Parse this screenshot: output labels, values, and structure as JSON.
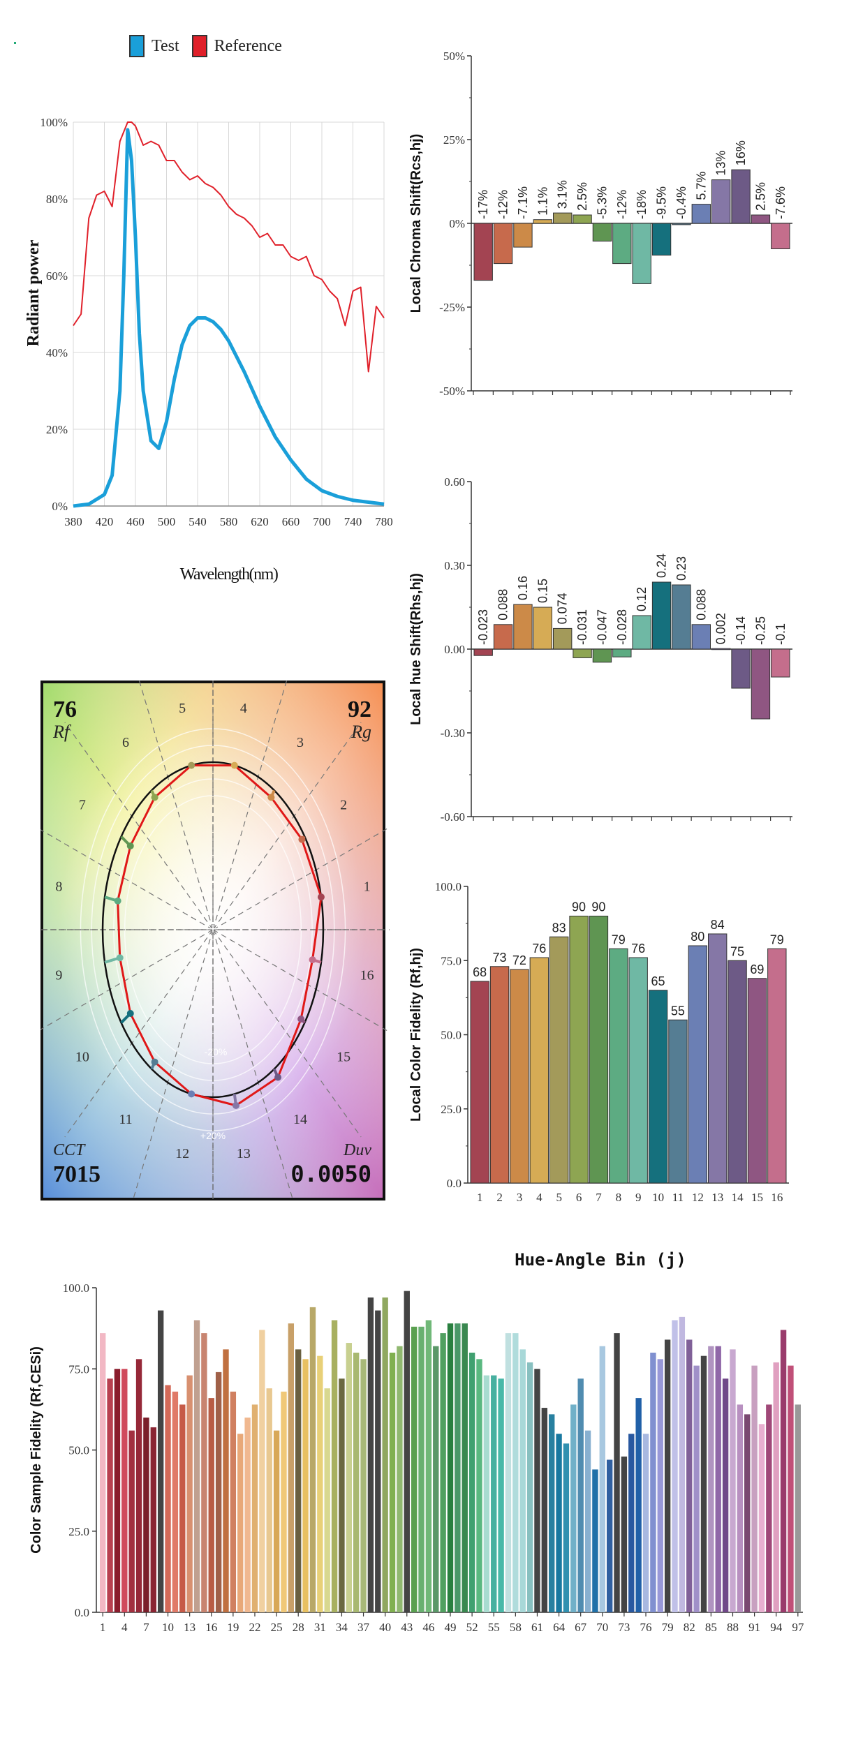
{
  "legend": {
    "test_label": "Test",
    "reference_label": "Reference",
    "test_color": "#1a9fd9",
    "reference_color": "#e0202a"
  },
  "chart_data": [
    {
      "type": "line",
      "xlabel": "Wavelength(nm)",
      "ylabel": "Radiant power",
      "xlim": [
        380,
        780
      ],
      "ylim": [
        0,
        100
      ],
      "x_ticks": [
        "380",
        "420",
        "460",
        "500",
        "540",
        "580",
        "620",
        "660",
        "700",
        "740",
        "780"
      ],
      "y_ticks": [
        "0%",
        "20%",
        "40%",
        "60%",
        "80%",
        "100%"
      ],
      "grid": true,
      "series": [
        {
          "name": "Test",
          "color": "#1a9fd9",
          "x": [
            380,
            400,
            420,
            430,
            440,
            445,
            450,
            455,
            460,
            465,
            470,
            480,
            490,
            500,
            510,
            520,
            530,
            540,
            550,
            560,
            570,
            580,
            600,
            620,
            640,
            660,
            680,
            700,
            720,
            740,
            760,
            780
          ],
          "y": [
            0,
            0.5,
            3,
            8,
            30,
            60,
            98,
            90,
            70,
            45,
            30,
            17,
            15,
            22,
            33,
            42,
            47,
            49,
            49,
            48,
            46,
            43,
            35,
            26,
            18,
            12,
            7,
            4,
            2.5,
            1.5,
            1,
            0.5
          ]
        },
        {
          "name": "Reference",
          "color": "#e0202a",
          "x": [
            380,
            390,
            400,
            410,
            420,
            430,
            440,
            450,
            455,
            460,
            470,
            480,
            490,
            500,
            510,
            520,
            530,
            540,
            550,
            560,
            570,
            580,
            590,
            600,
            610,
            620,
            630,
            640,
            650,
            660,
            670,
            680,
            690,
            700,
            710,
            720,
            730,
            740,
            750,
            760,
            770,
            780
          ],
          "y": [
            47,
            50,
            75,
            81,
            82,
            78,
            95,
            100,
            100,
            99,
            94,
            95,
            94,
            90,
            90,
            87,
            85,
            86,
            84,
            83,
            81,
            78,
            76,
            75,
            73,
            70,
            71,
            68,
            68,
            65,
            64,
            65,
            60,
            59,
            56,
            54,
            47,
            56,
            57,
            35,
            52,
            49
          ]
        }
      ]
    },
    {
      "type": "polar",
      "title": "",
      "rf_value": "76",
      "rf_label": "Rf",
      "rg_value": "92",
      "rg_label": "Rg",
      "cct_label": "CCT",
      "cct_value": "7015",
      "duv_label": "Duv",
      "duv_value": "0.0050",
      "ring_labels": [
        "-20%",
        "+20%"
      ],
      "bin_labels": [
        "1",
        "2",
        "3",
        "4",
        "5",
        "6",
        "7",
        "8",
        "9",
        "10",
        "11",
        "12",
        "13",
        "14",
        "15",
        "16"
      ],
      "test_radius_ratio": [
        1.0,
        0.97,
        0.95,
        1.0,
        1.0,
        0.95,
        0.9,
        0.88,
        0.86,
        0.9,
        0.95,
        1.0,
        1.07,
        1.06,
        0.96,
        0.92
      ]
    },
    {
      "type": "bar",
      "ylabel": "Local Chroma Shift(Rcs,hj)",
      "ylim": [
        -50,
        50
      ],
      "y_ticks": [
        "50%",
        "25%",
        "0%",
        "-25%",
        "-50%"
      ],
      "categories": [
        "1",
        "2",
        "3",
        "4",
        "5",
        "6",
        "7",
        "8",
        "9",
        "10",
        "11",
        "12",
        "13",
        "14",
        "15",
        "16"
      ],
      "values": [
        -17,
        -12,
        -7.1,
        1.1,
        3.1,
        2.5,
        -5.3,
        -12,
        -18,
        -9.5,
        -0.4,
        5.7,
        13,
        16,
        2.5,
        -7.6
      ],
      "data_labels": [
        "-17%",
        "-12%",
        "-7.1%",
        "1.1%",
        "3.1%",
        "2.5%",
        "-5.3%",
        "-12%",
        "-18%",
        "-9.5%",
        "-0.4%",
        "5.7%",
        "13%",
        "16%",
        "2.5%",
        "-7.6%"
      ]
    },
    {
      "type": "bar",
      "ylabel": "Local hue Shift(Rhs,hj)",
      "ylim": [
        -0.6,
        0.6
      ],
      "y_ticks": [
        "0.60",
        "0.30",
        "0.00",
        "-0.30",
        "-0.60"
      ],
      "categories": [
        "1",
        "2",
        "3",
        "4",
        "5",
        "6",
        "7",
        "8",
        "9",
        "10",
        "11",
        "12",
        "13",
        "14",
        "15",
        "16"
      ],
      "values": [
        -0.023,
        0.088,
        0.16,
        0.15,
        0.074,
        -0.031,
        -0.047,
        -0.028,
        0.12,
        0.24,
        0.23,
        0.088,
        0.002,
        -0.14,
        -0.25,
        -0.1
      ],
      "data_labels": [
        "-0.023",
        "0.088",
        "0.16",
        "0.15",
        "0.074",
        "-0.031",
        "-0.047",
        "-0.028",
        "0.12",
        "0.24",
        "0.23",
        "0.088",
        "0.002",
        "-0.14",
        "-0.25",
        "-0.1"
      ]
    },
    {
      "type": "bar",
      "ylabel": "Local Color Fidelity (Rf,hj)",
      "xlabel": "Hue-Angle Bin (j)",
      "ylim": [
        0,
        100
      ],
      "y_ticks": [
        "100.0",
        "75.0",
        "50.0",
        "25.0",
        "0.0"
      ],
      "categories": [
        "1",
        "2",
        "3",
        "4",
        "5",
        "6",
        "7",
        "8",
        "9",
        "10",
        "11",
        "12",
        "13",
        "14",
        "15",
        "16"
      ],
      "values": [
        68,
        73,
        72,
        76,
        83,
        90,
        90,
        79,
        76,
        65,
        55,
        80,
        84,
        75,
        69,
        79
      ],
      "data_labels": [
        "68",
        "73",
        "72",
        "76",
        "83",
        "90",
        "90",
        "79",
        "76",
        "65",
        "55",
        "80",
        "84",
        "75",
        "69",
        "79"
      ]
    },
    {
      "type": "bar",
      "ylabel": "Color Sample Fidelity (Rf,CESi)",
      "ylim": [
        0,
        100
      ],
      "y_ticks": [
        "100.0",
        "75.0",
        "50.0",
        "25.0",
        "0.0"
      ],
      "x_ticks": [
        "1",
        "4",
        "7",
        "10",
        "13",
        "16",
        "19",
        "22",
        "25",
        "28",
        "31",
        "34",
        "37",
        "40",
        "43",
        "46",
        "49",
        "52",
        "55",
        "58",
        "61",
        "64",
        "67",
        "70",
        "73",
        "76",
        "79",
        "82",
        "85",
        "88",
        "91",
        "94",
        "97"
      ],
      "values": [
        86,
        72,
        75,
        75,
        56,
        78,
        60,
        57,
        93,
        70,
        68,
        64,
        73,
        90,
        86,
        66,
        74,
        81,
        68,
        55,
        60,
        64,
        87,
        69,
        56,
        68,
        89,
        81,
        78,
        94,
        79,
        69,
        90,
        72,
        83,
        80,
        78,
        97,
        93,
        97,
        80,
        82,
        99,
        88,
        88,
        90,
        82,
        86,
        89,
        89,
        89,
        80,
        78,
        73,
        73,
        72,
        86,
        86,
        81,
        77,
        75,
        63,
        61,
        55,
        52,
        64,
        72,
        56,
        44,
        82,
        47,
        86,
        48,
        55,
        66,
        55,
        80,
        78,
        84,
        90,
        91,
        84,
        76,
        79,
        82,
        82,
        72,
        81,
        64,
        61,
        76,
        58,
        64,
        77,
        87,
        76,
        64
      ]
    }
  ],
  "bin_colors": [
    "#a34452",
    "#c76a4c",
    "#cc8a48",
    "#d6ab55",
    "#a39a5a",
    "#8ea552",
    "#5f9552",
    "#5dab82",
    "#6fb8a4",
    "#15707d",
    "#557d93",
    "#6b7fb4",
    "#8577a6",
    "#6d5a86",
    "#8f5682",
    "#c46e8c"
  ],
  "sample_colors": [
    "#f2b8c4",
    "#b84050",
    "#8a1c2c",
    "#d04a5c",
    "#a23040",
    "#962838",
    "#7a1e2a",
    "#8a2432",
    "#444444",
    "#d46a58",
    "#e07a68",
    "#c65a48",
    "#d89070",
    "#c0a090",
    "#c88470",
    "#b85c44",
    "#a06048",
    "#c07040",
    "#d08060",
    "#e8a878",
    "#f0b890",
    "#e0b070",
    "#f0d0a0",
    "#e8c890",
    "#d8a858",
    "#f0c878",
    "#c8a068",
    "#6a6040",
    "#e8c060",
    "#b8a868",
    "#e8d078",
    "#d8d890",
    "#a8b060",
    "#6a6840",
    "#c8d090",
    "#a8b870",
    "#a8b878",
    "#444444",
    "#b8c888",
    "#90a860",
    "#80b050",
    "#90b870",
    "#444444",
    "#5aa050",
    "#68b070",
    "#70b878",
    "#5a9868",
    "#50a060",
    "#2a8040",
    "#4a9868",
    "#3a8850",
    "#40a070",
    "#5ab880",
    "#a8dcd0",
    "#48b0a0",
    "#48b8a8",
    "#c0e0e0",
    "#b0dcdc",
    "#a8d8d8",
    "#88c0c0",
    "#444444",
    "#2890a8",
    "#2880a0",
    "#1878a0",
    "#3090b0",
    "#70b0c8",
    "#508cb0",
    "#88b0d0",
    "#2070a8",
    "#a8c8e0",
    "#3060a0",
    "#444444",
    "#5080c0",
    "#2858a0",
    "#2060a8",
    "#a8b8e0",
    "#8090d0",
    "#9898d8",
    "#444444",
    "#c0c0e8",
    "#c0b8e0",
    "#806098",
    "#a090c8",
    "#8a5c98",
    "#b094c0",
    "#9068a8",
    "#704888",
    "#c8a8d0",
    "#b890c0",
    "#7a4870",
    "#c8a0c0",
    "#e8b0d0",
    "#a04878",
    "#e0a0c0",
    "#9a3c6c",
    "#c05078"
  ],
  "sample_dark_ids": [
    9,
    39,
    43,
    62,
    73,
    84
  ]
}
